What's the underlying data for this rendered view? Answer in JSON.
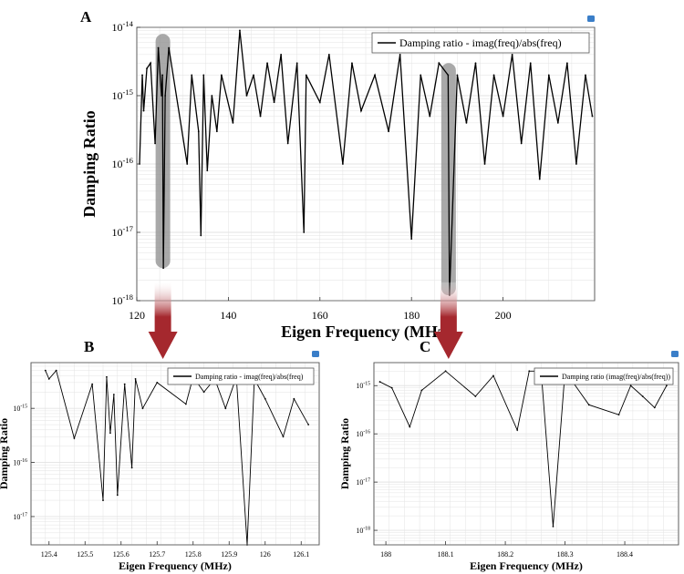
{
  "figure": {
    "colors": {
      "line": "#000000",
      "grid": "#e3e3e3",
      "highlight": "#8c8c8c",
      "arrow": "#a5282e",
      "frame": "#555555"
    }
  },
  "chart_data": [
    {
      "panel": "A",
      "type": "line",
      "xlabel": "Eigen Frequency (MHz)",
      "ylabel": "Damping Ratio",
      "y_scale": "log",
      "xlim": [
        120,
        220
      ],
      "ylim": [
        1e-18,
        1e-14
      ],
      "xticks": [
        "120",
        "140",
        "160",
        "180",
        "200"
      ],
      "yticks": [
        "10^-18",
        "10^-17",
        "10^-16",
        "10^-15",
        "10^-14"
      ],
      "legend": {
        "position": "top-right",
        "label": "Damping ratio - imag(freq)/abs(freq)"
      },
      "grid": true,
      "highlights": [
        {
          "x_center": 125.7,
          "y_from": 3e-18,
          "y_to": 8e-15
        },
        {
          "x_center": 188.1,
          "y_from": 1.2e-18,
          "y_to": 3e-15
        }
      ],
      "series": [
        {
          "x": [
            120.6,
            121.2,
            121.5,
            122.2,
            123.0,
            124.0,
            124.7,
            125.4,
            125.6,
            125.8,
            126.2,
            127.0,
            131.0,
            132.0,
            133.5,
            134.0,
            134.6,
            135.4,
            136.4,
            137.5,
            138.5,
            141.0,
            142.5,
            144.0,
            145.5,
            147.0,
            148.5,
            150.0,
            151.5,
            153.0,
            155.0,
            156.5,
            157.0,
            160.0,
            162.0,
            165.0,
            167.0,
            169.0,
            172.0,
            175.0,
            177.5,
            180.0,
            182.0,
            184.0,
            186.0,
            188.0,
            188.3,
            190.0,
            192.0,
            194.0,
            196.0,
            198.0,
            200.0,
            202.0,
            204.0,
            206.0,
            208.0,
            210.0,
            212.0,
            214.0,
            216.0,
            218.0,
            219.5
          ],
          "y": [
            1e-16,
            2e-15,
            6e-16,
            2.5e-15,
            3e-15,
            2e-16,
            5e-15,
            1e-15,
            2e-15,
            3e-18,
            1e-15,
            5e-15,
            1e-16,
            2e-15,
            3e-16,
            9e-18,
            2e-15,
            8e-17,
            1e-15,
            3e-16,
            2e-15,
            4e-16,
            9e-15,
            1e-15,
            2e-15,
            5e-16,
            3e-15,
            8e-16,
            4e-15,
            2e-16,
            3e-15,
            1e-17,
            2e-15,
            8e-16,
            4e-15,
            1e-16,
            3e-15,
            6e-16,
            2e-15,
            3e-16,
            4e-15,
            8e-18,
            2e-15,
            5e-16,
            3e-15,
            2e-15,
            1.2e-18,
            2e-15,
            4e-16,
            3e-15,
            1e-16,
            2e-15,
            5e-16,
            4e-15,
            2e-16,
            3e-15,
            6e-17,
            2e-15,
            4e-16,
            3e-15,
            1e-16,
            2e-15,
            5e-16
          ]
        }
      ]
    },
    {
      "panel": "B",
      "type": "line",
      "xlabel": "Eigen Frequency (MHz)",
      "ylabel": "Damping Ratio",
      "y_scale": "log",
      "xlim": [
        125.35,
        126.15
      ],
      "ylim": [
        3e-18,
        7e-15
      ],
      "xticks": [
        "125.4",
        "125.5",
        "125.6",
        "125.7",
        "125.8",
        "125.9",
        "126",
        "126.1"
      ],
      "yticks": [
        "10^-17",
        "10^-16",
        "10^-15"
      ],
      "legend": {
        "position": "top-right",
        "label": "Damping ratio - imag(freq)/abs(freq)"
      },
      "grid": true,
      "series": [
        {
          "x": [
            125.39,
            125.4,
            125.42,
            125.47,
            125.52,
            125.55,
            125.56,
            125.57,
            125.58,
            125.59,
            125.61,
            125.63,
            125.64,
            125.66,
            125.7,
            125.78,
            125.8,
            125.83,
            125.86,
            125.89,
            125.92,
            125.95,
            125.97,
            126.0,
            126.05,
            126.08,
            126.12
          ],
          "y": [
            5e-15,
            3.5e-15,
            5e-15,
            2.8e-16,
            2.8e-15,
            2e-17,
            3.8e-15,
            3.5e-16,
            1.8e-15,
            2.5e-17,
            2.8e-15,
            8e-17,
            3.5e-15,
            1e-15,
            3e-15,
            1.2e-15,
            3.8e-15,
            2e-15,
            3.5e-15,
            1e-15,
            3.8e-15,
            3e-18,
            3.5e-15,
            1.5e-15,
            3e-16,
            1.5e-15,
            5e-16
          ]
        }
      ]
    },
    {
      "panel": "C",
      "type": "line",
      "xlabel": "Eigen Frequency (MHz)",
      "ylabel": "Damping Ratio",
      "y_scale": "log",
      "xlim": [
        187.98,
        188.49
      ],
      "ylim": [
        5e-19,
        3e-15
      ],
      "xticks": [
        "188",
        "188.1",
        "188.2",
        "188.3",
        "188.4"
      ],
      "yticks": [
        "10^-18",
        "10^-17",
        "10^-16",
        "10^-15"
      ],
      "legend": {
        "position": "top-right",
        "label": "Damping ratio (imag(freq)/abs(freq))"
      },
      "grid": true,
      "series": [
        {
          "x": [
            187.99,
            188.01,
            188.04,
            188.06,
            188.1,
            188.15,
            188.18,
            188.22,
            188.24,
            188.26,
            188.28,
            188.3,
            188.34,
            188.39,
            188.41,
            188.43,
            188.45,
            188.47
          ],
          "y": [
            1.2e-15,
            9e-16,
            1.4e-16,
            8e-16,
            2e-15,
            6e-16,
            1.6e-15,
            1.2e-16,
            2e-15,
            2e-15,
            1.2e-18,
            2e-15,
            4e-16,
            2.5e-16,
            1e-15,
            6e-16,
            3.5e-16,
            1e-15
          ]
        }
      ]
    }
  ]
}
